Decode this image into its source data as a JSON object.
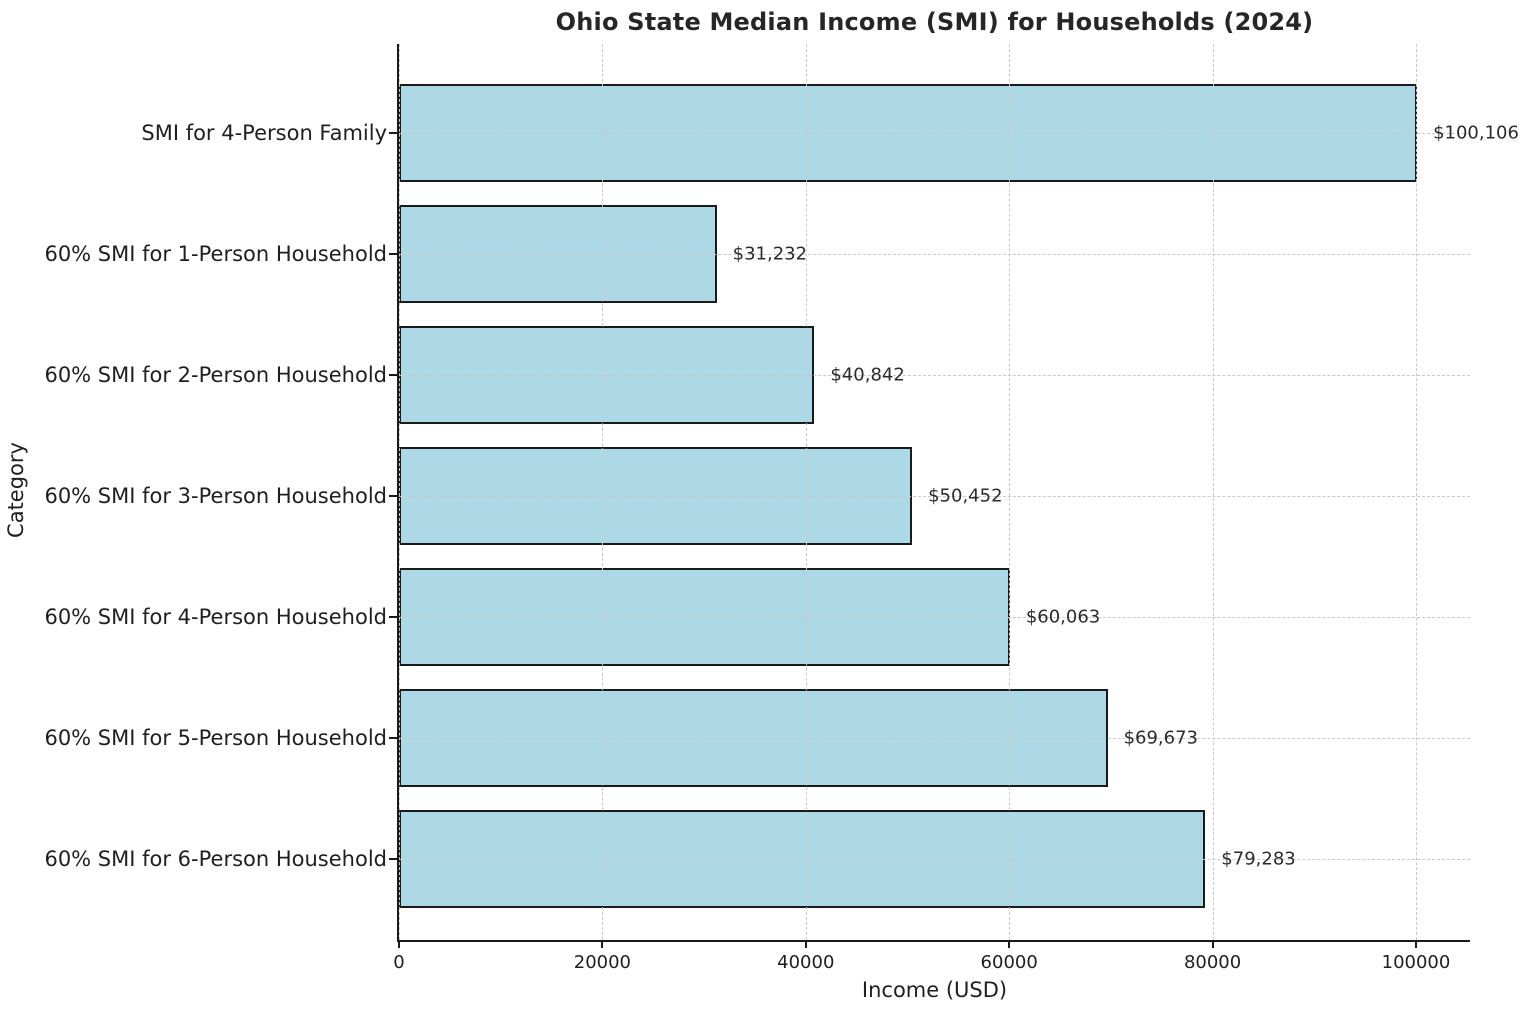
{
  "chart_data": {
    "type": "bar",
    "orientation": "horizontal",
    "title": "Ohio State Median Income (SMI) for Households (2024)",
    "xlabel": "Income (USD)",
    "ylabel": "Category",
    "categories": [
      "SMI for 4-Person Family",
      "60% SMI for 1-Person Household",
      "60% SMI for 2-Person Household",
      "60% SMI for 3-Person Household",
      "60% SMI for 4-Person Household",
      "60% SMI for 5-Person Household",
      "60% SMI for 6-Person Household"
    ],
    "values": [
      100106,
      31232,
      40842,
      50452,
      60063,
      69673,
      79283
    ],
    "value_labels": [
      "$100,106",
      "$31,232",
      "$40,842",
      "$50,452",
      "$60,063",
      "$69,673",
      "$79,283"
    ],
    "x_ticks": [
      0,
      20000,
      40000,
      60000,
      80000,
      100000
    ],
    "x_tick_labels": [
      "0",
      "20000",
      "40000",
      "60000",
      "80000",
      "100000"
    ],
    "xlim": [
      0,
      105310
    ],
    "grid": "dashed-both-axes",
    "legend_position": "none",
    "colors": {
      "bar_fill": "#ADD8E6",
      "bar_edge": "#1a1a1a",
      "grid": "#c9c9c9",
      "text": "#1f1f1f",
      "background": "#ffffff"
    }
  }
}
